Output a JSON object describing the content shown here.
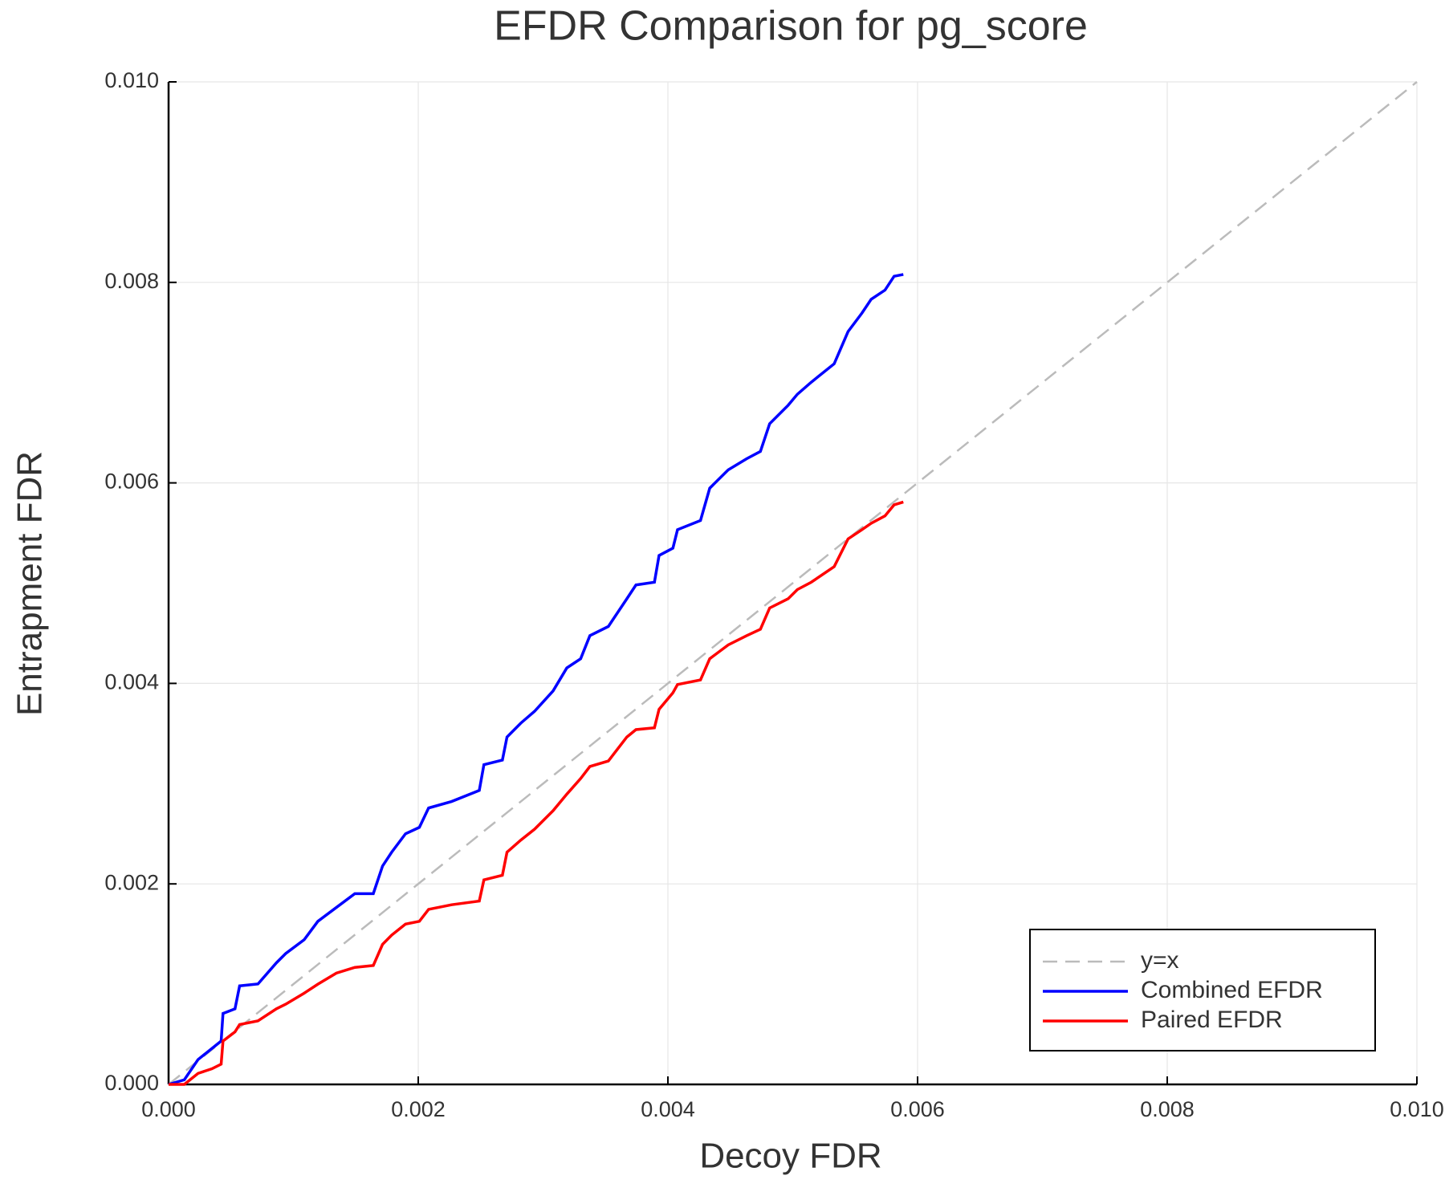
{
  "chart_data": {
    "type": "line",
    "title": "EFDR Comparison for pg_score",
    "x_label": "Decoy FDR",
    "y_label": "Entrapment FDR",
    "xlim": [
      0,
      0.01
    ],
    "ylim": [
      0,
      0.01
    ],
    "xticks": [
      {
        "value": 0,
        "label": "0.000"
      },
      {
        "value": 0.002,
        "label": "0.002"
      },
      {
        "value": 0.004,
        "label": "0.004"
      },
      {
        "value": 0.006,
        "label": "0.006"
      },
      {
        "value": 0.008,
        "label": "0.008"
      },
      {
        "value": 0.01,
        "label": "0.010"
      }
    ],
    "yticks": [
      {
        "value": 0,
        "label": "0.000"
      },
      {
        "value": 0.002,
        "label": "0.002"
      },
      {
        "value": 0.004,
        "label": "0.004"
      },
      {
        "value": 0.006,
        "label": "0.006"
      },
      {
        "value": 0.008,
        "label": "0.008"
      },
      {
        "value": 0.01,
        "label": "0.010"
      }
    ],
    "grid": true,
    "legend": "lower right",
    "series": [
      {
        "name": "y=x",
        "color": "#bbbbbb",
        "dashed": true,
        "x": [
          0,
          0.01
        ],
        "values": [
          0,
          0.01
        ]
      },
      {
        "name": "Combined EFDR",
        "color": "#0000ff",
        "x": [
          0,
          0.000126,
          0.000236,
          0.000347,
          0.000421,
          0.000436,
          0.000532,
          0.000569,
          0.000716,
          0.000864,
          0.000938,
          0.001086,
          0.001196,
          0.001344,
          0.001492,
          0.00164,
          0.001714,
          0.001787,
          0.001898,
          0.002009,
          0.002083,
          0.002267,
          0.002489,
          0.002526,
          0.002674,
          0.002711,
          0.002821,
          0.002932,
          0.00308,
          0.00319,
          0.003301,
          0.003375,
          0.003523,
          0.003671,
          0.003744,
          0.003892,
          0.003929,
          0.00404,
          0.004077,
          0.004261,
          0.004335,
          0.004483,
          0.004631,
          0.004741,
          0.004815,
          0.004963,
          0.005037,
          0.005148,
          0.005332,
          0.005443,
          0.005554,
          0.005628,
          0.005739,
          0.005812,
          0.005886
        ],
        "values": [
          0,
          4.6e-05,
          0.000248,
          0.000358,
          0.000432,
          0.000708,
          0.000754,
          0.000983,
          0.001002,
          0.001213,
          0.001305,
          0.001443,
          0.001627,
          0.001765,
          0.001903,
          0.001903,
          0.002178,
          0.002316,
          0.0025,
          0.002564,
          0.002757,
          0.002822,
          0.002932,
          0.003189,
          0.003235,
          0.003465,
          0.003603,
          0.003722,
          0.003925,
          0.004154,
          0.004246,
          0.004476,
          0.004568,
          0.004844,
          0.004982,
          0.005009,
          0.005276,
          0.005349,
          0.005533,
          0.005625,
          0.005947,
          0.00613,
          0.006241,
          0.006314,
          0.00659,
          0.006774,
          0.006884,
          0.007004,
          0.007188,
          0.007509,
          0.007693,
          0.007831,
          0.007923,
          0.008061,
          0.008079
        ]
      },
      {
        "name": "Paired EFDR",
        "color": "#ff0000",
        "x": [
          0,
          0.000126,
          0.000236,
          0.000347,
          0.000421,
          0.000436,
          0.000532,
          0.000569,
          0.000716,
          0.000864,
          0.000938,
          0.001086,
          0.001196,
          0.001344,
          0.001492,
          0.00164,
          0.001714,
          0.001787,
          0.001898,
          0.002009,
          0.002083,
          0.002267,
          0.002489,
          0.002526,
          0.002674,
          0.002711,
          0.002821,
          0.002932,
          0.00308,
          0.00319,
          0.003301,
          0.003375,
          0.003523,
          0.003671,
          0.003744,
          0.003892,
          0.003929,
          0.00404,
          0.004077,
          0.004261,
          0.004335,
          0.004483,
          0.004631,
          0.004741,
          0.004815,
          0.004963,
          0.005037,
          0.005148,
          0.005332,
          0.005443,
          0.005554,
          0.005628,
          0.005739,
          0.005812,
          0.005886
        ],
        "values": [
          0,
          0,
          0.00011,
          0.000156,
          0.000202,
          0.000432,
          0.000524,
          0.000597,
          0.000634,
          0.000754,
          0.0008,
          0.00091,
          0.001,
          0.00111,
          0.001167,
          0.001186,
          0.001397,
          0.001489,
          0.001599,
          0.001627,
          0.001746,
          0.001792,
          0.001829,
          0.00204,
          0.002086,
          0.002316,
          0.002436,
          0.002546,
          0.00273,
          0.002895,
          0.003051,
          0.003171,
          0.003226,
          0.003465,
          0.003539,
          0.003557,
          0.003741,
          0.003906,
          0.003989,
          0.004035,
          0.004246,
          0.004384,
          0.004476,
          0.00454,
          0.004752,
          0.004844,
          0.004936,
          0.005009,
          0.005165,
          0.005441,
          0.005533,
          0.005597,
          0.005671,
          0.005781,
          0.005809
        ]
      }
    ]
  }
}
